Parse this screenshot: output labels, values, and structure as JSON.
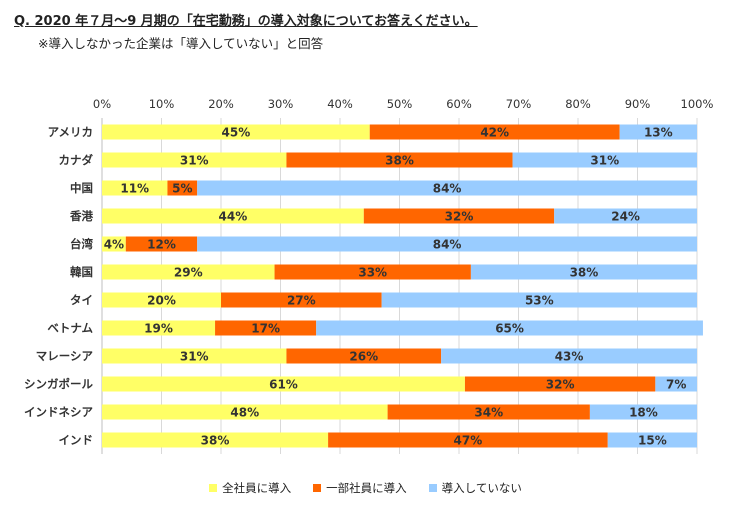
{
  "title": "Q. 2020 年７月～9 月期の「在宅勤務」の導入対象についてお答えください。",
  "subtitle": "※導入しなかった企業は「導入していない」と回答",
  "chart_data": {
    "type": "bar",
    "orientation": "horizontal",
    "stacked": true,
    "categories": [
      "アメリカ",
      "カナダ",
      "中国",
      "香港",
      "台湾",
      "韓国",
      "タイ",
      "ベトナム",
      "マレーシア",
      "シンガポール",
      "インドネシア",
      "インド"
    ],
    "series": [
      {
        "name": "全社員に導入",
        "color": "#FFFF66",
        "values": [
          45,
          31,
          11,
          44,
          4,
          29,
          20,
          19,
          31,
          61,
          48,
          38
        ]
      },
      {
        "name": "一部社員に導入",
        "color": "#FF6600",
        "values": [
          42,
          38,
          5,
          32,
          12,
          33,
          27,
          17,
          26,
          32,
          34,
          47
        ]
      },
      {
        "name": "導入していない",
        "color": "#99CCFF",
        "values": [
          13,
          31,
          84,
          24,
          84,
          38,
          53,
          65,
          43,
          7,
          18,
          15
        ]
      }
    ],
    "xlim": [
      0,
      100
    ],
    "xticks": [
      "0%",
      "10%",
      "20%",
      "30%",
      "40%",
      "50%",
      "60%",
      "70%",
      "80%",
      "90%",
      "100%"
    ],
    "value_suffix": "%",
    "grid": true,
    "legend_position": "bottom"
  }
}
